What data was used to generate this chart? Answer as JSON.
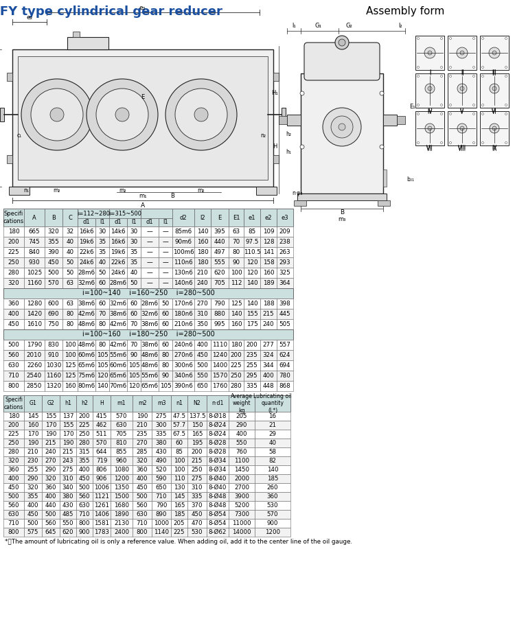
{
  "title_left": "ZFY type cylindrical gear reducer",
  "title_right": "Assembly form",
  "title_color": "#1a4fa0",
  "table1_subheader1": "i=100~140    i=160~250    i=280~500",
  "table1_subheader2": "i=100~160    i=180~250    i=280~500",
  "table1_group1": [
    [
      "180",
      "665",
      "320",
      "32",
      "16k6",
      "30",
      "14k6",
      "30",
      "—",
      "—",
      "85m6",
      "140",
      "395",
      "63",
      "85",
      "109",
      "209"
    ],
    [
      "200",
      "745",
      "355",
      "40",
      "19k6",
      "35",
      "16k6",
      "30",
      "—",
      "—",
      "90m6",
      "160",
      "440",
      "70",
      "97.5",
      "128",
      "238"
    ],
    [
      "225",
      "840",
      "390",
      "40",
      "22k6",
      "35",
      "19k6",
      "35",
      "—",
      "—",
      "100m6",
      "180",
      "497",
      "80",
      "110.5",
      "141",
      "263"
    ],
    [
      "250",
      "930",
      "450",
      "50",
      "24k6",
      "40",
      "22k6",
      "35",
      "—",
      "—",
      "110n6",
      "180",
      "555",
      "90",
      "120",
      "158",
      "293"
    ],
    [
      "280",
      "1025",
      "500",
      "50",
      "28m6",
      "50",
      "24k6",
      "40",
      "—",
      "—",
      "130n6",
      "210",
      "620",
      "100",
      "120",
      "160",
      "325"
    ],
    [
      "320",
      "1160",
      "570",
      "63",
      "32m6",
      "60",
      "28m6",
      "50",
      "—",
      "—",
      "140n6",
      "240",
      "705",
      "112",
      "140",
      "189",
      "364"
    ]
  ],
  "table1_group2": [
    [
      "360",
      "1280",
      "600",
      "63",
      "38m6",
      "60",
      "32m6",
      "60",
      "28m6",
      "50",
      "170n6",
      "270",
      "790",
      "125",
      "140",
      "188",
      "398"
    ],
    [
      "400",
      "1420",
      "690",
      "80",
      "42m6",
      "70",
      "38m6",
      "60",
      "32m6",
      "60",
      "180n6",
      "310",
      "880",
      "140",
      "155",
      "215",
      "445"
    ],
    [
      "450",
      "1610",
      "750",
      "80",
      "48m6",
      "80",
      "42m6",
      "70",
      "38m6",
      "60",
      "210n6",
      "350",
      "995",
      "160",
      "175",
      "240",
      "505"
    ]
  ],
  "table1_group3": [
    [
      "500",
      "1790",
      "830",
      "100",
      "48m6",
      "80",
      "42m6",
      "70",
      "38m6",
      "60",
      "240n6",
      "400",
      "1110",
      "180",
      "200",
      "277",
      "557"
    ],
    [
      "560",
      "2010",
      "910",
      "100",
      "60m6",
      "105",
      "55m6",
      "90",
      "48m6",
      "80",
      "270n6",
      "450",
      "1240",
      "200",
      "235",
      "324",
      "624"
    ],
    [
      "630",
      "2260",
      "1030",
      "125",
      "65m6",
      "105",
      "60m6",
      "105",
      "48m6",
      "80",
      "300n6",
      "500",
      "1400",
      "225",
      "255",
      "344",
      "694"
    ],
    [
      "710",
      "2540",
      "1160",
      "125",
      "75m6",
      "120",
      "65m6",
      "105",
      "55m6",
      "90",
      "340n6",
      "550",
      "1570",
      "250",
      "295",
      "400",
      "780"
    ],
    [
      "800",
      "2850",
      "1320",
      "160",
      "80m6",
      "140",
      "70m6",
      "120",
      "65m6",
      "105",
      "390n6",
      "650",
      "1760",
      "280",
      "335",
      "448",
      "868"
    ]
  ],
  "table2_data": [
    [
      "180",
      "145",
      "155",
      "137",
      "200",
      "415",
      "570",
      "190",
      "275",
      "47.5",
      "137.5",
      "8-Ø18",
      "205",
      "16"
    ],
    [
      "200",
      "160",
      "170",
      "155",
      "225",
      "462",
      "630",
      "210",
      "300",
      "57.7",
      "150",
      "8-Ø24",
      "290",
      "21"
    ],
    [
      "225",
      "170",
      "190",
      "170",
      "250",
      "511",
      "705",
      "235",
      "335",
      "67.5",
      "165",
      "8-Ø24",
      "400",
      "29"
    ],
    [
      "250",
      "190",
      "215",
      "190",
      "280",
      "570",
      "810",
      "270",
      "380",
      "60",
      "195",
      "8-Ø28",
      "550",
      "40"
    ],
    [
      "280",
      "210",
      "240",
      "215",
      "315",
      "644",
      "855",
      "285",
      "430",
      "85",
      "200",
      "8-Ø28",
      "760",
      "58"
    ],
    [
      "320",
      "230",
      "270",
      "243",
      "355",
      "719",
      "960",
      "320",
      "490",
      "100",
      "215",
      "8-Ø34",
      "1100",
      "82"
    ],
    [
      "360",
      "255",
      "290",
      "275",
      "400",
      "806",
      "1080",
      "360",
      "520",
      "100",
      "250",
      "8-Ø34",
      "1450",
      "140"
    ],
    [
      "400",
      "290",
      "320",
      "310",
      "450",
      "906",
      "1200",
      "400",
      "590",
      "110",
      "275",
      "8-Ø40",
      "2000",
      "185"
    ],
    [
      "450",
      "320",
      "360",
      "340",
      "500",
      "1006",
      "1350",
      "450",
      "650",
      "130",
      "310",
      "8-Ø40",
      "2700",
      "260"
    ],
    [
      "500",
      "355",
      "400",
      "380",
      "560",
      "1121",
      "1500",
      "500",
      "710",
      "145",
      "335",
      "8-Ø48",
      "3900",
      "360"
    ],
    [
      "560",
      "400",
      "440",
      "430",
      "630",
      "1261",
      "1680",
      "560",
      "790",
      "165",
      "370",
      "8-Ø48",
      "5200",
      "530"
    ],
    [
      "630",
      "450",
      "500",
      "485",
      "710",
      "1406",
      "1890",
      "630",
      "890",
      "185",
      "450",
      "8-Ø54",
      "7300",
      "570"
    ],
    [
      "710",
      "500",
      "560",
      "550",
      "800",
      "1581",
      "2130",
      "710",
      "1000",
      "205",
      "470",
      "8-Ø54",
      "11000",
      "900"
    ],
    [
      "800",
      "575",
      "645",
      "620",
      "900",
      "1783",
      "2400",
      "800",
      "1140",
      "225",
      "530",
      "8-Ø62",
      "14000",
      "1200"
    ]
  ],
  "footnote": "*）The amount of lubricating oil is only a reference value. When adding oil, add it to the center line of the oil gauge.",
  "bg_color": "#ffffff",
  "header_bg": "#cce0e0",
  "subheader_bg": "#cce0e0",
  "border_color": "#666666",
  "line_color": "#222222"
}
